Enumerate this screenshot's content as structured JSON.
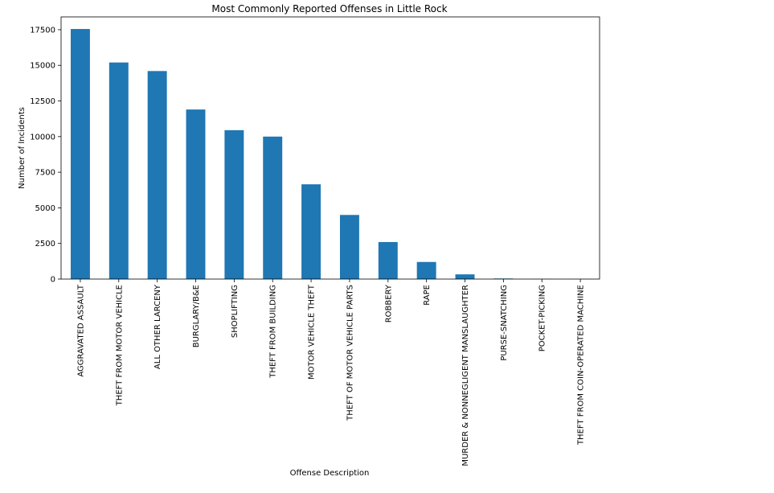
{
  "chart_data": {
    "type": "bar",
    "title": "Most Commonly Reported Offenses in Little Rock",
    "xlabel": "Offense Description",
    "ylabel": "Number of Incidents",
    "ylim": [
      0,
      18400
    ],
    "yticks": [
      0,
      2500,
      5000,
      7500,
      10000,
      12500,
      15000,
      17500
    ],
    "grid": false,
    "bar_color": "#1f77b4",
    "categories": [
      "AGGRAVATED ASSAULT",
      "THEFT FROM MOTOR VEHICLE",
      "ALL OTHER LARCENY",
      "BURGLARY/B&E",
      "SHOPLIFTING",
      "THEFT FROM BUILDING",
      "MOTOR VEHICLE THEFT",
      "THEFT OF MOTOR VEHICLE PARTS",
      "ROBBERY",
      "RAPE",
      "MURDER & NONNEGLIGENT MANSLAUGHTER",
      "PURSE-SNATCHING",
      "POCKET-PICKING",
      "THEFT FROM COIN-OPERATED MACHINE"
    ],
    "values": [
      17550,
      15200,
      14600,
      11900,
      10450,
      10000,
      6650,
      4500,
      2600,
      1200,
      330,
      40,
      10,
      5
    ]
  }
}
